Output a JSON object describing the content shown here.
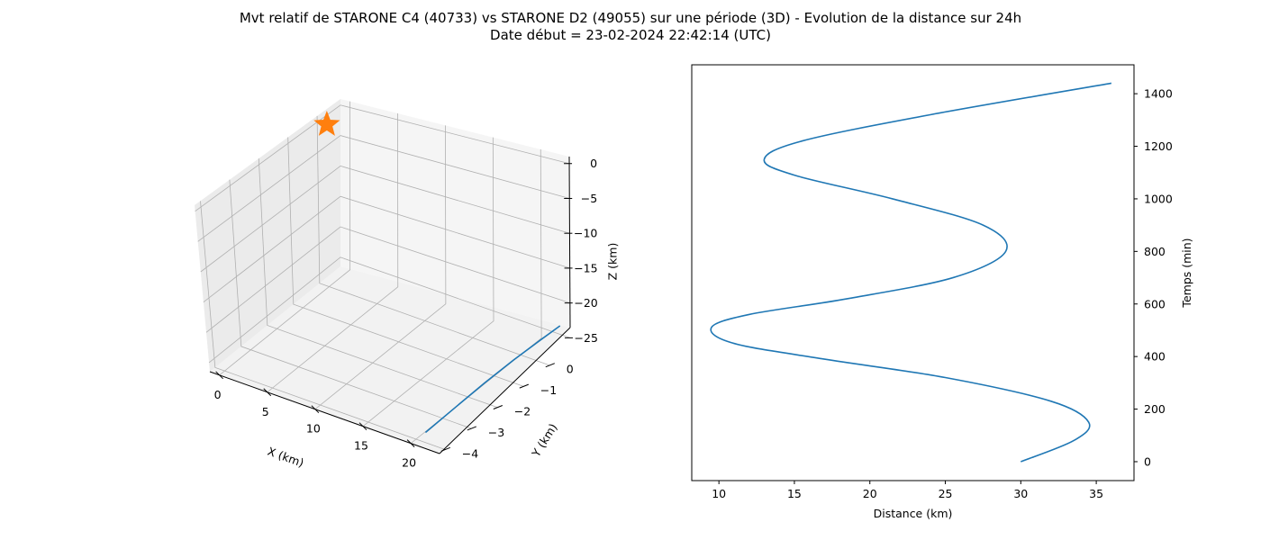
{
  "figure": {
    "title_line1": "Mvt relatif de STARONE C4 (40733) vs STARONE D2 (49055) sur une période (3D) - Evolution de la distance sur 24h",
    "title_line2": "Date début = 23-02-2024 22:42:14 (UTC)"
  },
  "colors": {
    "series": "#1f77b4",
    "marker": "#ff7f0e",
    "axis": "#000000",
    "grid": "#b0b0b0",
    "pane": "#f2f2f2"
  },
  "chart_data": [
    {
      "type": "line3d",
      "xlabel": "X (km)",
      "ylabel": "Y (km)",
      "zlabel": "Z (km)",
      "xlim": [
        -1.0,
        23.0
      ],
      "ylim": [
        -4.2,
        0.8
      ],
      "zlim": [
        -26.5,
        1.0
      ],
      "xticks": [
        "0",
        "5",
        "10",
        "15",
        "20"
      ],
      "yticks": [
        "−4",
        "−3",
        "−2",
        "−1",
        "0"
      ],
      "zticks": [
        "−25",
        "−20",
        "−15",
        "−10",
        "−5",
        "0"
      ],
      "series": [
        {
          "points": [
            {
              "x": 21.0,
              "y": -4.0,
              "z": -25.0
            },
            {
              "x": 21.4,
              "y": -3.0,
              "z": -24.2
            },
            {
              "x": 21.7,
              "y": -2.0,
              "z": -23.6
            },
            {
              "x": 22.0,
              "y": -1.0,
              "z": -23.2
            },
            {
              "x": 22.3,
              "y": 0.0,
              "z": -23.0
            },
            {
              "x": 22.5,
              "y": 0.6,
              "z": -22.9
            }
          ]
        }
      ],
      "marker": {
        "symbol": "star",
        "x": 0,
        "y": 0,
        "z": 0
      },
      "grid": true
    },
    {
      "type": "line",
      "xlabel": "Distance (km)",
      "ylabel": "Temps (min)",
      "xlim": [
        8.2,
        37.5
      ],
      "ylim": [
        -72,
        1510
      ],
      "xticks": [
        10,
        15,
        20,
        25,
        30,
        35
      ],
      "yticks": [
        0,
        200,
        400,
        600,
        800,
        1000,
        1200,
        1400
      ],
      "yaxis_position": "right",
      "grid": false,
      "series": [
        {
          "distance": [
            30.0,
            33.5,
            34.5,
            32.0,
            25.0,
            17.0,
            11.0,
            9.5,
            12.0,
            18.5,
            25.5,
            29.0,
            27.5,
            21.5,
            15.0,
            13.0,
            15.5,
            24.0,
            36.0
          ],
          "time": [
            0,
            80,
            150,
            230,
            320,
            390,
            450,
            510,
            560,
            620,
            700,
            800,
            900,
            1000,
            1090,
            1150,
            1220,
            1320,
            1440
          ]
        }
      ]
    }
  ]
}
